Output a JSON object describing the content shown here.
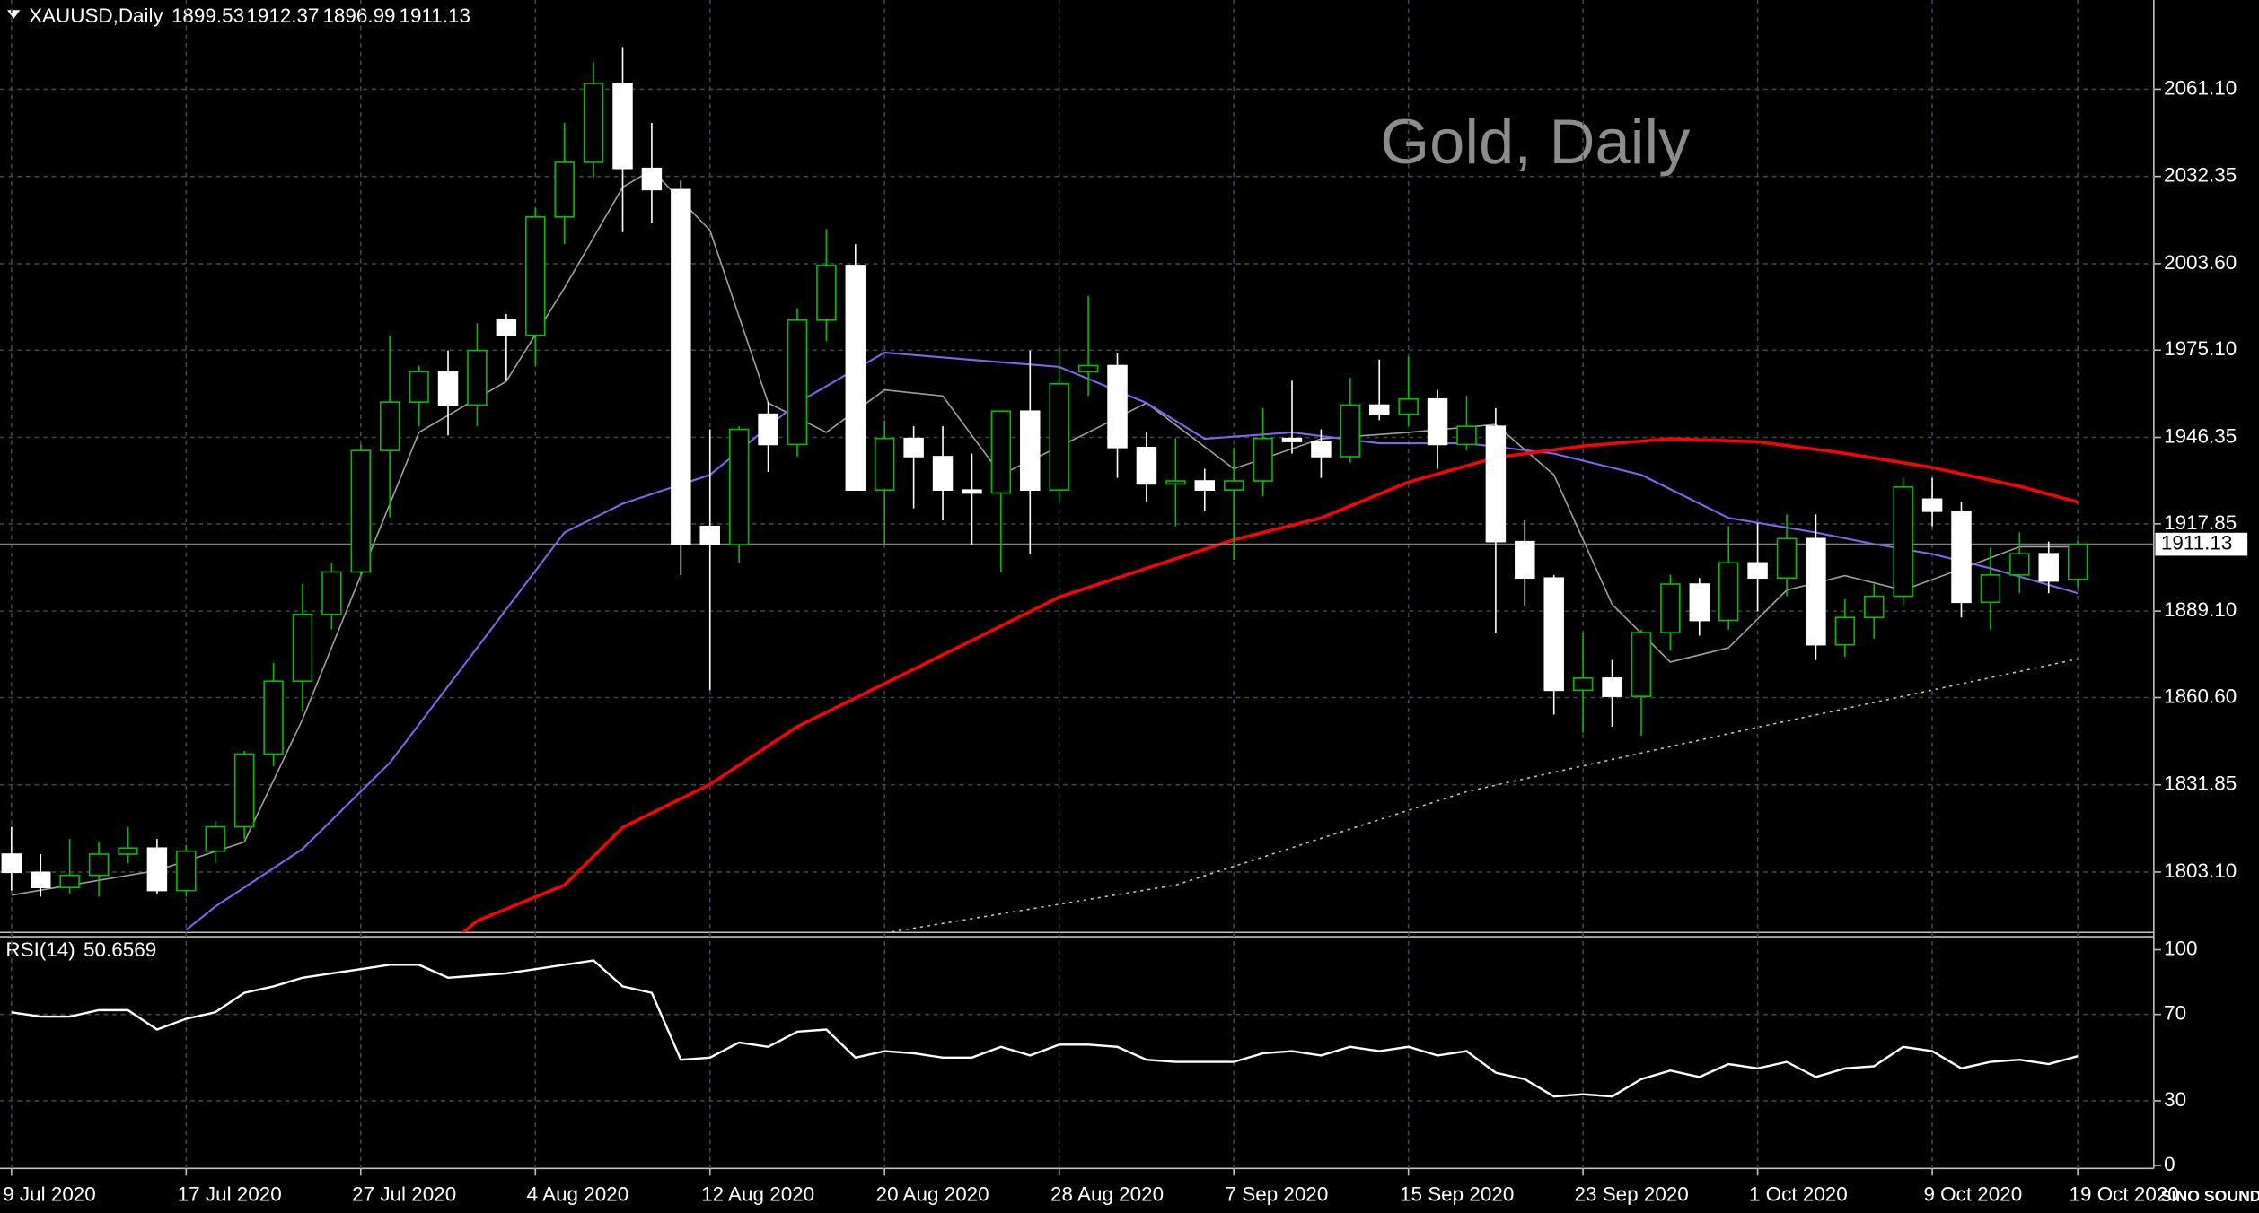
{
  "header": {
    "symbol": "XAUUSD,Daily",
    "logo": "SINO SOUND"
  },
  "chart_data": [
    {
      "type": "candlestick",
      "title": "Gold, Daily",
      "categories": [
        "9 Jul 2020",
        null,
        null,
        null,
        null,
        null,
        "17 Jul 2020",
        null,
        null,
        null,
        null,
        null,
        "27 Jul 2020",
        null,
        null,
        null,
        null,
        null,
        "4 Aug 2020",
        null,
        null,
        null,
        null,
        null,
        "12 Aug 2020",
        null,
        null,
        null,
        null,
        null,
        "20 Aug 2020",
        null,
        null,
        null,
        null,
        null,
        "28 Aug 2020",
        null,
        null,
        null,
        null,
        null,
        "7 Sep 2020",
        null,
        null,
        null,
        null,
        null,
        "15 Sep 2020",
        null,
        null,
        null,
        null,
        null,
        "23 Sep 2020",
        null,
        null,
        null,
        null,
        null,
        "1 Oct 2020",
        null,
        null,
        null,
        null,
        null,
        "9 Oct 2020",
        null,
        null,
        null,
        null,
        "19 Oct 2020"
      ],
      "open": [
        1809,
        1803,
        1798,
        1802,
        1809,
        1811,
        1797,
        1810,
        1818,
        1842,
        1866,
        1888,
        1902,
        1942,
        1958,
        1968,
        1957,
        1985,
        1980,
        2019,
        2037,
        2063,
        2035,
        2028,
        1917,
        1911,
        1954,
        1944,
        1985,
        2003,
        1929,
        1946,
        1940,
        1929,
        1928,
        1955,
        1929,
        1968,
        1970,
        1943,
        1931,
        1932,
        1929,
        1932,
        1946,
        1945,
        1940,
        1957,
        1954,
        1959,
        1944,
        1950,
        1912,
        1900,
        1863,
        1867,
        1861,
        1882,
        1898,
        1886,
        1905,
        1900,
        1913,
        1878,
        1887,
        1894,
        1926,
        1922,
        1892,
        1901,
        1908,
        1899.53
      ],
      "high": [
        1818,
        1809,
        1814,
        1813,
        1818,
        1814,
        1812,
        1820,
        1843,
        1872,
        1898,
        1905,
        1944,
        1980,
        1970,
        1975,
        1984,
        1987,
        2022,
        2050,
        2070,
        2075,
        2050,
        2031,
        1949,
        1950,
        1958,
        1989,
        2015,
        2010,
        1952,
        1950,
        1950,
        1941,
        1955,
        1975,
        1976,
        1993,
        1974,
        1948,
        1946,
        1936,
        1943,
        1956,
        1965,
        1949,
        1966,
        1972,
        1973,
        1962,
        1960,
        1956,
        1919,
        1901,
        1882,
        1873,
        1883,
        1901,
        1900,
        1917,
        1918,
        1921,
        1921,
        1893,
        1898,
        1933,
        1933,
        1925,
        1910,
        1915,
        1912,
        1912.37
      ],
      "low": [
        1797,
        1795,
        1796,
        1795,
        1806,
        1796,
        1795,
        1806,
        1814,
        1838,
        1856,
        1883,
        1900,
        1920,
        1950,
        1947,
        1950,
        1965,
        1970,
        2010,
        2032,
        2014,
        2017,
        1901,
        1863,
        1905,
        1935,
        1940,
        1978,
        1929,
        1911,
        1923,
        1919,
        1911,
        1902,
        1908,
        1925,
        1960,
        1933,
        1925,
        1917,
        1922,
        1906,
        1927,
        1941,
        1933,
        1938,
        1952,
        1950,
        1936,
        1942,
        1882,
        1891,
        1855,
        1849,
        1851,
        1848,
        1876,
        1881,
        1883,
        1889,
        1894,
        1873,
        1874,
        1880,
        1891,
        1917,
        1887,
        1883,
        1895,
        1895,
        1896.99
      ],
      "close": [
        1803,
        1798,
        1802,
        1809,
        1811,
        1797,
        1810,
        1818,
        1842,
        1866,
        1888,
        1902,
        1942,
        1958,
        1968,
        1957,
        1975,
        1980,
        2019,
        2037,
        2063,
        2035,
        2028,
        1911,
        1911,
        1949,
        1944,
        1985,
        2003,
        1929,
        1946,
        1940,
        1929,
        1928,
        1955,
        1929,
        1964,
        1970,
        1943,
        1931,
        1932,
        1929,
        1932,
        1946,
        1945,
        1940,
        1957,
        1954,
        1959,
        1944,
        1950,
        1912,
        1900,
        1863,
        1867,
        1861,
        1882,
        1898,
        1886,
        1905,
        1900,
        1913,
        1878,
        1887,
        1894,
        1930,
        1922,
        1892,
        1901,
        1908,
        1899,
        1911.13
      ],
      "up_color": "#00c000",
      "down_color": "#ffffff",
      "lines": [
        {
          "color": "#a0a0a0",
          "style": "thin",
          "x": [
            0,
            5,
            8,
            10,
            12,
            14,
            17,
            19,
            21,
            22,
            24,
            26,
            28,
            30,
            32,
            34,
            37,
            39,
            42,
            45,
            48,
            51,
            53,
            55,
            57,
            59,
            61,
            63,
            65,
            67,
            69,
            71
          ],
          "values": [
            1795.5,
            1803.6,
            1813,
            1853.4,
            1900.8,
            1948,
            1964.8,
            1995.6,
            2028.8,
            2034.5,
            2014.6,
            1957.7,
            1948,
            1962,
            1960,
            1934,
            1948,
            1957.7,
            1936,
            1945.9,
            1948,
            1950.6,
            1934,
            1891.3,
            1872.3,
            1877,
            1896,
            1900.8,
            1896,
            1903,
            1910.3,
            1910.3
          ]
        },
        {
          "color": "#7b68ee",
          "style": "solid",
          "x": [
            6,
            7,
            10,
            13,
            16,
            19,
            21,
            24,
            27,
            30,
            33,
            36,
            39,
            41,
            44,
            47,
            50,
            53,
            56,
            59,
            62,
            64,
            66,
            68,
            71
          ],
          "values": [
            1784,
            1791.7,
            1810.7,
            1839.1,
            1877,
            1915,
            1924.5,
            1934,
            1957.7,
            1974.3,
            1971.9,
            1969.6,
            1957.7,
            1945.9,
            1948,
            1944.4,
            1944.4,
            1941,
            1934,
            1919.8,
            1915,
            1911.2,
            1907.9,
            1903.2,
            1895
          ]
        },
        {
          "color": "#ff0000",
          "style": "thick",
          "x": [
            15.5,
            16,
            19,
            21,
            24,
            27,
            30,
            33,
            36,
            39,
            42,
            45,
            48,
            51,
            54,
            57,
            60,
            63,
            66,
            69,
            71
          ],
          "values": [
            1783,
            1787,
            1798.8,
            1817.8,
            1832,
            1851,
            1865.2,
            1879.4,
            1893.7,
            1903.2,
            1912.6,
            1919.8,
            1931.6,
            1939.7,
            1943.5,
            1945.9,
            1944.9,
            1941.1,
            1936.4,
            1930.2,
            1925
          ]
        },
        {
          "color": "#c0c0c0",
          "style": "dotted",
          "x": [
            30,
            40,
            50,
            60,
            71
          ],
          "values": [
            1783,
            1798.8,
            1829.6,
            1850.8,
            1873.3
          ]
        }
      ],
      "ylim": [
        1783.2,
        2090.5
      ],
      "yticks": [
        {
          "value": 2061.1,
          "label": "2061.10"
        },
        2032.35,
        {
          "value": 2003.6,
          "label": "2003.60"
        },
        {
          "value": 1975.1,
          "label": "1975.10"
        },
        1946.35,
        1917.85,
        {
          "value": 1889.1,
          "label": "1889.10"
        },
        {
          "value": 1860.6,
          "label": "1860.60"
        },
        1831.85,
        {
          "value": 1803.1,
          "label": "1803.10"
        }
      ],
      "grid": true
    },
    {
      "type": "line",
      "title": "RSI(14)",
      "color": "#ffffff",
      "values": [
        71,
        69,
        69,
        72,
        72,
        63,
        68,
        71,
        80,
        83,
        87,
        89,
        91,
        93,
        93,
        87,
        88,
        89,
        91,
        93,
        95,
        83,
        80,
        49,
        50,
        57,
        55,
        62,
        63,
        50,
        53,
        52,
        50,
        50,
        55,
        51,
        56,
        56,
        55,
        49,
        48,
        48,
        48,
        52,
        53,
        51,
        55,
        53,
        55,
        51,
        53,
        43,
        40,
        32,
        33,
        32,
        40,
        44,
        41,
        47,
        45,
        48,
        41,
        45,
        46,
        55,
        53,
        45,
        48,
        49,
        47,
        50.6569
      ],
      "ylim": [
        0,
        100
      ],
      "yticks": [
        100,
        70,
        30,
        0
      ]
    }
  ]
}
